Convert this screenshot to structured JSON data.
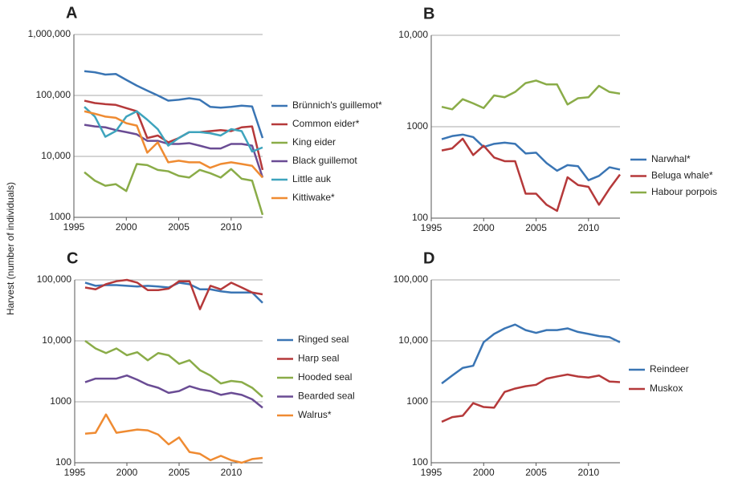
{
  "ylabel": "Harvest (number of individuals)",
  "chart_data": [
    {
      "type": "line",
      "label": "A",
      "log_scale": true,
      "grid": true,
      "x": [
        1996,
        1997,
        1998,
        1999,
        2000,
        2001,
        2002,
        2003,
        2004,
        2005,
        2006,
        2007,
        2008,
        2009,
        2010,
        2011,
        2012,
        2013
      ],
      "xlim": [
        1995,
        2013
      ],
      "xticks": [
        1995,
        2000,
        2005,
        2010
      ],
      "ylim": [
        1000,
        1000000
      ],
      "yticks": [
        1000,
        {
          "value": 10000,
          "label": "10,000"
        },
        {
          "value": 100000,
          "label": "100,000"
        },
        {
          "value": 1000000,
          "label": "1,000,000"
        }
      ],
      "series": [
        {
          "name": "Brünnich's guillemot*",
          "color": "#3a75b4",
          "values": [
            250000,
            240000,
            220000,
            225000,
            180000,
            145000,
            120000,
            100000,
            82000,
            85000,
            90000,
            85000,
            65000,
            63000,
            65000,
            68000,
            66000,
            20000
          ]
        },
        {
          "name": "Common eider*",
          "color": "#b5393a",
          "values": [
            82000,
            75000,
            72000,
            70000,
            62000,
            55000,
            20000,
            22000,
            17000,
            20000,
            25000,
            25000,
            26000,
            27000,
            26000,
            30000,
            31000,
            6000
          ]
        },
        {
          "name": "King eider",
          "color": "#8aac48",
          "values": [
            5500,
            4000,
            3300,
            3500,
            2700,
            7500,
            7200,
            6000,
            5700,
            4800,
            4500,
            6000,
            5300,
            4500,
            6200,
            4300,
            4000,
            1100
          ]
        },
        {
          "name": "Black guillemot",
          "color": "#6a4c94",
          "values": [
            33000,
            31000,
            30000,
            27000,
            25000,
            23000,
            18000,
            18000,
            16000,
            16000,
            16500,
            15000,
            13500,
            13500,
            16000,
            16000,
            15000,
            4500
          ]
        },
        {
          "name": "Little auk",
          "color": "#3ea4bd",
          "values": [
            65000,
            45000,
            21000,
            26000,
            45000,
            55000,
            40000,
            28000,
            15000,
            20000,
            25000,
            25000,
            24000,
            22000,
            28000,
            26000,
            12000,
            14000
          ]
        },
        {
          "name": "Kittiwake*",
          "color": "#ef8b32",
          "values": [
            55000,
            50000,
            45000,
            43000,
            35000,
            32000,
            11500,
            17000,
            8000,
            8500,
            8000,
            8000,
            6500,
            7500,
            8000,
            7500,
            7000,
            4500
          ]
        }
      ]
    },
    {
      "type": "line",
      "label": "B",
      "log_scale": true,
      "grid": true,
      "x": [
        1996,
        1997,
        1998,
        1999,
        2000,
        2001,
        2002,
        2003,
        2004,
        2005,
        2006,
        2007,
        2008,
        2009,
        2010,
        2011,
        2012,
        2013
      ],
      "xlim": [
        1995,
        2013
      ],
      "xticks": [
        1995,
        2000,
        2005,
        2010
      ],
      "ylim": [
        100,
        10000
      ],
      "yticks": [
        100,
        1000,
        {
          "value": 10000,
          "label": "10,000"
        }
      ],
      "series": [
        {
          "name": "Narwhal*",
          "color": "#3a75b4",
          "values": [
            730,
            790,
            820,
            770,
            600,
            650,
            670,
            650,
            510,
            520,
            400,
            330,
            380,
            370,
            260,
            290,
            360,
            340
          ]
        },
        {
          "name": "Beluga whale*",
          "color": "#b5393a",
          "values": [
            550,
            580,
            740,
            490,
            620,
            460,
            420,
            420,
            185,
            185,
            140,
            120,
            280,
            230,
            220,
            140,
            210,
            300
          ]
        },
        {
          "name": "Habour porpois",
          "color": "#8aac48",
          "values": [
            1650,
            1550,
            2000,
            1800,
            1600,
            2200,
            2100,
            2400,
            3000,
            3200,
            2900,
            2900,
            1750,
            2050,
            2100,
            2800,
            2400,
            2300
          ]
        }
      ]
    },
    {
      "type": "line",
      "label": "C",
      "log_scale": true,
      "grid": true,
      "x": [
        1996,
        1997,
        1998,
        1999,
        2000,
        2001,
        2002,
        2003,
        2004,
        2005,
        2006,
        2007,
        2008,
        2009,
        2010,
        2011,
        2012,
        2013
      ],
      "xlim": [
        1995,
        2013
      ],
      "xticks": [
        1995,
        2000,
        2005,
        2010
      ],
      "ylim": [
        100,
        100000
      ],
      "yticks": [
        100,
        1000,
        {
          "value": 10000,
          "label": "10,000"
        },
        {
          "value": 100000,
          "label": "100,000"
        }
      ],
      "series": [
        {
          "name": "Ringed seal",
          "color": "#3a75b4",
          "values": [
            90000,
            80000,
            82000,
            82000,
            80000,
            78000,
            80000,
            78000,
            75000,
            90000,
            85000,
            70000,
            70000,
            65000,
            62000,
            62000,
            62000,
            42000
          ]
        },
        {
          "name": "Harp seal",
          "color": "#b5393a",
          "values": [
            75000,
            70000,
            85000,
            95000,
            100000,
            90000,
            68000,
            68000,
            72000,
            95000,
            95000,
            33000,
            80000,
            70000,
            90000,
            75000,
            62000,
            58000
          ]
        },
        {
          "name": "Hooded seal",
          "color": "#8aac48",
          "values": [
            10000,
            7500,
            6300,
            7500,
            5800,
            6500,
            4800,
            6300,
            5800,
            4200,
            4800,
            3300,
            2700,
            2000,
            2200,
            2100,
            1700,
            1200
          ]
        },
        {
          "name": "Bearded seal",
          "color": "#6a4c94",
          "values": [
            2100,
            2400,
            2400,
            2400,
            2700,
            2300,
            1900,
            1700,
            1400,
            1500,
            1800,
            1600,
            1500,
            1300,
            1400,
            1300,
            1100,
            800
          ]
        },
        {
          "name": "Walrus*",
          "color": "#ef8b32",
          "values": [
            300,
            310,
            620,
            310,
            330,
            350,
            340,
            290,
            200,
            260,
            150,
            140,
            110,
            130,
            110,
            100,
            115,
            120
          ]
        }
      ]
    },
    {
      "type": "line",
      "label": "D",
      "log_scale": true,
      "grid": true,
      "x": [
        1996,
        1997,
        1998,
        1999,
        2000,
        2001,
        2002,
        2003,
        2004,
        2005,
        2006,
        2007,
        2008,
        2009,
        2010,
        2011,
        2012,
        2013
      ],
      "xlim": [
        1995,
        2013
      ],
      "xticks": [
        1995,
        2000,
        2005,
        2010
      ],
      "ylim": [
        100,
        100000
      ],
      "yticks": [
        100,
        1000,
        {
          "value": 10000,
          "label": "10,000"
        },
        {
          "value": 100000,
          "label": "100,000"
        }
      ],
      "series": [
        {
          "name": "Reindeer",
          "color": "#3a75b4",
          "values": [
            2000,
            2700,
            3600,
            3900,
            9500,
            13000,
            16000,
            18500,
            15000,
            13500,
            15000,
            15000,
            16000,
            14000,
            13000,
            12000,
            11500,
            9500
          ]
        },
        {
          "name": "Muskox",
          "color": "#b5393a",
          "values": [
            470,
            560,
            590,
            950,
            820,
            800,
            1450,
            1650,
            1800,
            1900,
            2400,
            2600,
            2800,
            2600,
            2500,
            2700,
            2150,
            2100
          ]
        }
      ]
    }
  ]
}
